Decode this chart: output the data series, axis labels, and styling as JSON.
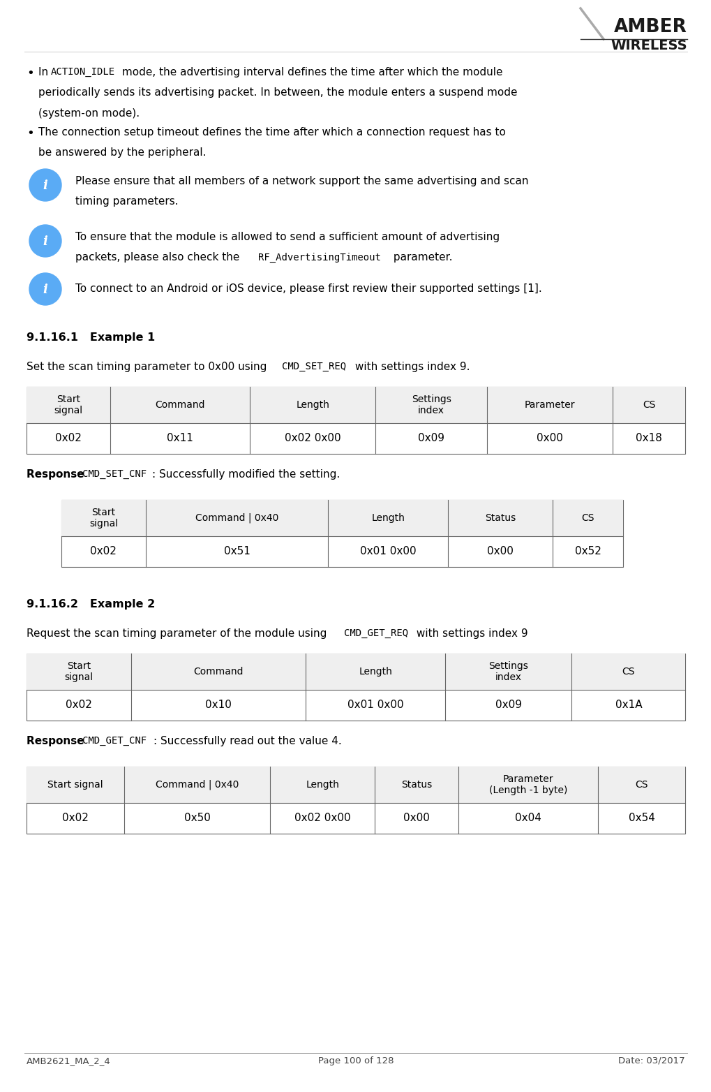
{
  "page_width": 10.2,
  "page_height": 15.64,
  "background_color": "#ffffff",
  "footer_left": "AMB2621_MA_2_4",
  "footer_center": "Page 100 of 128",
  "footer_right": "Date: 03/2017",
  "bullet1_pre": "In ",
  "bullet1_code": "ACTION_IDLE",
  "bullet1_post": " mode, the advertising interval defines the time after which the module",
  "bullet1_line2": "periodically sends its advertising packet. In between, the module enters a suspend mode",
  "bullet1_line3": "(system-on mode).",
  "bullet2_line1": "The connection setup timeout defines the time after which a connection request has to",
  "bullet2_line2": "be answered by the peripheral.",
  "info1_line1": "Please ensure that all members of a network support the same advertising and scan",
  "info1_line2": "timing parameters.",
  "info2_line1": "To ensure that the module is allowed to send a sufficient amount of advertising",
  "info2_line2_pre": "packets, please also check the ",
  "info2_line2_code": "RF_AdvertisingTimeout",
  "info2_line2_post": " parameter.",
  "info3_line1": "To connect to an Android or iOS device, please first review their supported settings [1].",
  "section1_title": "9.1.16.1   Example 1",
  "section1_desc_pre": "Set the scan timing parameter to 0x00 using  ",
  "section1_desc_code": "CMD_SET_REQ",
  "section1_desc_post": " with settings index 9.",
  "table1_headers": [
    "Start\nsignal",
    "Command",
    "Length",
    "Settings\nindex",
    "Parameter",
    "CS"
  ],
  "table1_row": [
    "0x02",
    "0x11",
    "0x02 0x00",
    "0x09",
    "0x00",
    "0x18"
  ],
  "table1_col_ratios": [
    0.127,
    0.212,
    0.191,
    0.169,
    0.191,
    0.11
  ],
  "resp1_pre": "Response ",
  "resp1_code": "CMD_SET_CNF",
  "resp1_post": ": Successfully modified the setting.",
  "table2_headers": [
    "Start\nsignal",
    "Command | 0x40",
    "Length",
    "Status",
    "CS"
  ],
  "table2_row": [
    "0x02",
    "0x51",
    "0x01 0x00",
    "0x00",
    "0x52"
  ],
  "table2_col_ratios": [
    0.15,
    0.325,
    0.213,
    0.187,
    0.125
  ],
  "section2_title": "9.1.16.2   Example 2",
  "section2_desc_pre": "Request the scan timing parameter of the module using  ",
  "section2_desc_code": "CMD_GET_REQ",
  "section2_desc_post": " with settings index 9",
  "table3_headers": [
    "Start\nsignal",
    "Command",
    "Length",
    "Settings\nindex",
    "CS"
  ],
  "table3_row": [
    "0x02",
    "0x10",
    "0x01 0x00",
    "0x09",
    "0x1A"
  ],
  "table3_col_ratios": [
    0.159,
    0.265,
    0.212,
    0.191,
    0.174
  ],
  "resp2_pre": "Response ",
  "resp2_code": "CMD_GET_CNF",
  "resp2_post": ": Successfully read out the value 4.",
  "table4_headers": [
    "Start signal",
    "Command | 0x40",
    "Length",
    "Status",
    "Parameter\n(Length -1 byte)",
    "CS"
  ],
  "table4_row": [
    "0x02",
    "0x50",
    "0x02 0x00",
    "0x00",
    "0x04",
    "0x54"
  ],
  "table4_col_ratios": [
    0.148,
    0.222,
    0.159,
    0.127,
    0.212,
    0.132
  ]
}
